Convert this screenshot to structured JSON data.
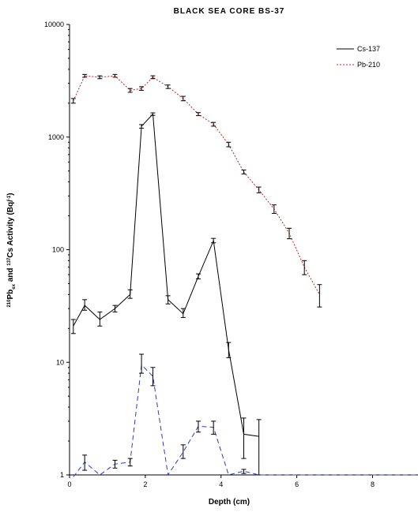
{
  "chart_data": {
    "type": "line",
    "title": "BLACK SEA CORE BS-37",
    "xlabel": "Depth (cm)",
    "ylabel": {
      "parts": [
        {
          "text": "210",
          "sup": true
        },
        {
          "text": "Pb",
          "sup": false
        },
        {
          "text": "ex",
          "sub": true
        },
        {
          "text": " and ",
          "sup": false
        },
        {
          "text": "137",
          "sup": true
        },
        {
          "text": "Cs Activity (Bq/",
          "sup": false
        },
        {
          "text": "-1",
          "sup": true
        },
        {
          "text": ")",
          "sup": false
        }
      ]
    },
    "xlim": [
      0,
      9.2
    ],
    "ylim": [
      1,
      10000
    ],
    "yscale": "log",
    "xticks": [
      0,
      2,
      4,
      6,
      8
    ],
    "xtick_labels": [
      "0",
      "2",
      "4",
      "6",
      "8"
    ],
    "yticks": [
      1,
      10,
      100,
      1000,
      10000
    ],
    "ytick_labels": [
      "1",
      "10",
      "100",
      "1000",
      "10000"
    ],
    "grid": false,
    "legend_position": "top-right",
    "series": [
      {
        "name": "Cs-137",
        "color": "#000000",
        "style": "solid",
        "x": [
          0.1,
          0.4,
          0.8,
          1.2,
          1.6,
          1.9,
          2.2,
          2.6,
          3.0,
          3.4,
          3.8,
          4.2,
          4.6,
          5.0
        ],
        "y": [
          21,
          32,
          24,
          30,
          40,
          1250,
          1600,
          36,
          27,
          58,
          120,
          13,
          2.3,
          2.2
        ],
        "err_low": [
          18,
          29,
          21,
          28,
          37,
          1200,
          1560,
          33,
          25,
          55,
          115,
          11,
          1.4,
          1.0
        ],
        "err_high": [
          24,
          36,
          28,
          32,
          44,
          1290,
          1640,
          39,
          30,
          61,
          126,
          15,
          3.2,
          3.1
        ]
      },
      {
        "name": "Pb-210",
        "color": "#d02020",
        "style": "dotted",
        "x": [
          0.1,
          0.4,
          0.8,
          1.2,
          1.6,
          1.9,
          2.2,
          2.6,
          3.0,
          3.4,
          3.8,
          4.2,
          4.6,
          5.0,
          5.4,
          5.8,
          6.2,
          6.6
        ],
        "y": [
          2100,
          3500,
          3400,
          3500,
          2600,
          2700,
          3400,
          2800,
          2200,
          1600,
          1300,
          860,
          490,
          340,
          230,
          140,
          70,
          40
        ],
        "err_low": [
          2000,
          3400,
          3300,
          3400,
          2500,
          2600,
          3300,
          2700,
          2100,
          1550,
          1250,
          820,
          470,
          320,
          210,
          125,
          60,
          31
        ],
        "err_high": [
          2200,
          3600,
          3500,
          3600,
          2700,
          2800,
          3500,
          2900,
          2300,
          1650,
          1350,
          900,
          510,
          360,
          250,
          155,
          80,
          49
        ]
      },
      {
        "name": "",
        "color": "#2b3fc4",
        "style": "dashed",
        "x": [
          0.1,
          0.4,
          0.8,
          1.2,
          1.6,
          1.9,
          2.2,
          2.6,
          3.0,
          3.4,
          3.8,
          4.2,
          4.6,
          5.0,
          9.2
        ],
        "y": [
          0.96,
          1.3,
          1.0,
          1.25,
          1.3,
          9.5,
          7.5,
          1.0,
          1.6,
          2.7,
          2.65,
          1.0,
          1.08,
          1.0,
          1.0
        ],
        "err_low": [
          null,
          1.1,
          null,
          1.15,
          1.2,
          8.0,
          6.2,
          null,
          1.4,
          2.4,
          2.3,
          null,
          1.03,
          null,
          null
        ],
        "err_high": [
          null,
          1.5,
          null,
          1.35,
          1.4,
          11.8,
          9.0,
          null,
          1.85,
          3.0,
          3.0,
          null,
          1.12,
          null,
          null
        ]
      }
    ]
  }
}
